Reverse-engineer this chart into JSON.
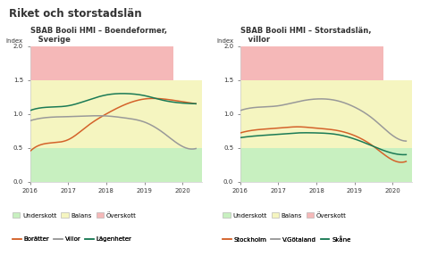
{
  "title": "Riket och storstadslän",
  "left_title": "SBAB Booli HMI – Boendeformer,\n   Sverige",
  "right_title": "SBAB Booli HMI – Storstadslän,\n   villor",
  "index_label": "Index",
  "ylim": [
    0.0,
    2.0
  ],
  "yticks": [
    0.0,
    0.5,
    1.0,
    1.5,
    2.0
  ],
  "xlim": [
    2016.0,
    2020.5
  ],
  "xticks": [
    2016,
    2017,
    2018,
    2019,
    2020
  ],
  "zone_underskott": [
    0.0,
    0.5
  ],
  "zone_balans": [
    0.5,
    1.5
  ],
  "zone_overskott": [
    1.5,
    2.0
  ],
  "zone_color_underskott": "#c8f0c0",
  "zone_color_balans": "#f5f5c0",
  "zone_color_overskott": "#f5b8b8",
  "zone_overskott_xmax": 2019.75,
  "left_x": [
    2016.0,
    2016.5,
    2017.0,
    2017.5,
    2018.0,
    2018.5,
    2019.0,
    2019.5,
    2020.0,
    2020.35
  ],
  "left_boratter": [
    0.45,
    0.57,
    0.62,
    0.82,
    1.0,
    1.14,
    1.22,
    1.22,
    1.18,
    1.15
  ],
  "left_villor": [
    0.9,
    0.95,
    0.96,
    0.97,
    0.97,
    0.94,
    0.88,
    0.72,
    0.52,
    0.49
  ],
  "left_lagenheter": [
    1.05,
    1.1,
    1.12,
    1.2,
    1.28,
    1.3,
    1.27,
    1.2,
    1.16,
    1.15
  ],
  "right_x": [
    2016.0,
    2016.5,
    2017.0,
    2017.5,
    2018.0,
    2018.5,
    2019.0,
    2019.5,
    2020.0,
    2020.35
  ],
  "right_stockholm": [
    0.72,
    0.77,
    0.79,
    0.81,
    0.79,
    0.76,
    0.68,
    0.52,
    0.32,
    0.3
  ],
  "right_vgotaland": [
    1.05,
    1.1,
    1.12,
    1.18,
    1.22,
    1.2,
    1.1,
    0.92,
    0.68,
    0.6
  ],
  "right_skane": [
    0.65,
    0.68,
    0.7,
    0.72,
    0.72,
    0.7,
    0.63,
    0.52,
    0.42,
    0.4
  ],
  "color_orange": "#d4622a",
  "color_gray": "#999999",
  "color_green": "#1a7a55",
  "bg_color": "#ffffff",
  "legend_zones": [
    "Underskott",
    "Balans",
    "Överskott"
  ],
  "legend_left_lines": [
    "Borätter",
    "Villor",
    "Lägenheter"
  ],
  "legend_right_lines": [
    "Stockholm",
    "V.Götaland",
    "Skåne"
  ],
  "font_color": "#333333"
}
